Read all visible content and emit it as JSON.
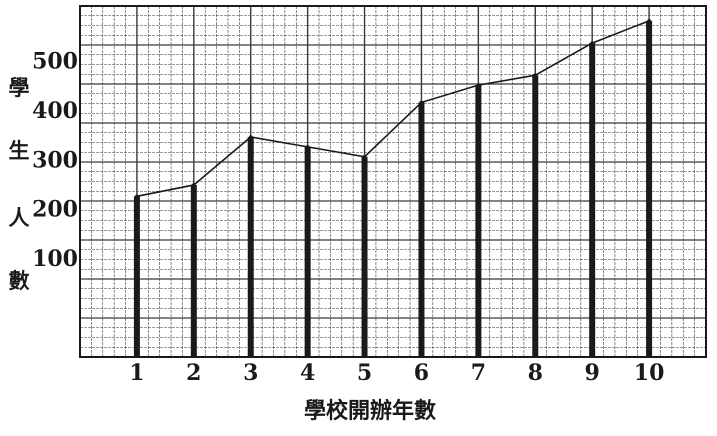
{
  "chart_data": {
    "type": "line",
    "x": [
      1,
      2,
      3,
      4,
      5,
      6,
      7,
      8,
      9,
      10
    ],
    "tick_labels": [
      "1",
      "2",
      "3",
      "4",
      "5",
      "6",
      "7",
      "8",
      "9",
      "10"
    ],
    "values": [
      225,
      248,
      345,
      325,
      305,
      415,
      450,
      470,
      535,
      580
    ],
    "yticks": [
      100,
      200,
      300,
      400,
      500
    ],
    "ytick_labels": [
      "100",
      "200",
      "300",
      "400",
      "500"
    ],
    "ylim": [
      -100,
      610
    ],
    "xlim": [
      0,
      11
    ],
    "ylabel_chars": [
      "學",
      "生",
      "人",
      "數"
    ],
    "xlabel": "學校開辦年數",
    "grid": true,
    "colors": {
      "ink": "#1a1a1a",
      "grid": "#3a3a3a",
      "background": "#ffffff"
    }
  }
}
